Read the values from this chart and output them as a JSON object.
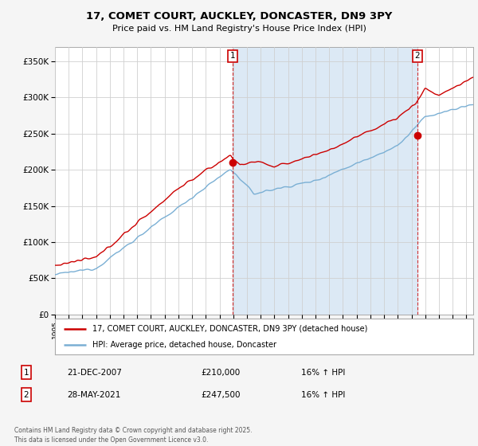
{
  "title": "17, COMET COURT, AUCKLEY, DONCASTER, DN9 3PY",
  "subtitle": "Price paid vs. HM Land Registry's House Price Index (HPI)",
  "ylim": [
    0,
    370000
  ],
  "yticks": [
    0,
    50000,
    100000,
    150000,
    200000,
    250000,
    300000,
    350000
  ],
  "background_color": "#f5f5f5",
  "plot_background": "#ffffff",
  "shade_color": "#dce9f5",
  "grid_color": "#d0d0d0",
  "legend_label_red": "17, COMET COURT, AUCKLEY, DONCASTER, DN9 3PY (detached house)",
  "legend_label_blue": "HPI: Average price, detached house, Doncaster",
  "annotation1_label": "1",
  "annotation1_date": "21-DEC-2007",
  "annotation1_price": "£210,000",
  "annotation1_hpi": "16% ↑ HPI",
  "annotation2_label": "2",
  "annotation2_date": "28-MAY-2021",
  "annotation2_price": "£247,500",
  "annotation2_hpi": "16% ↑ HPI",
  "footer": "Contains HM Land Registry data © Crown copyright and database right 2025.\nThis data is licensed under the Open Government Licence v3.0.",
  "red_color": "#cc0000",
  "blue_color": "#7aafd4",
  "vline_color": "#cc0000",
  "sale1_x": 2007.97,
  "sale1_y": 210000,
  "sale2_x": 2021.41,
  "sale2_y": 247500,
  "xmin": 1995,
  "xmax": 2025.5
}
